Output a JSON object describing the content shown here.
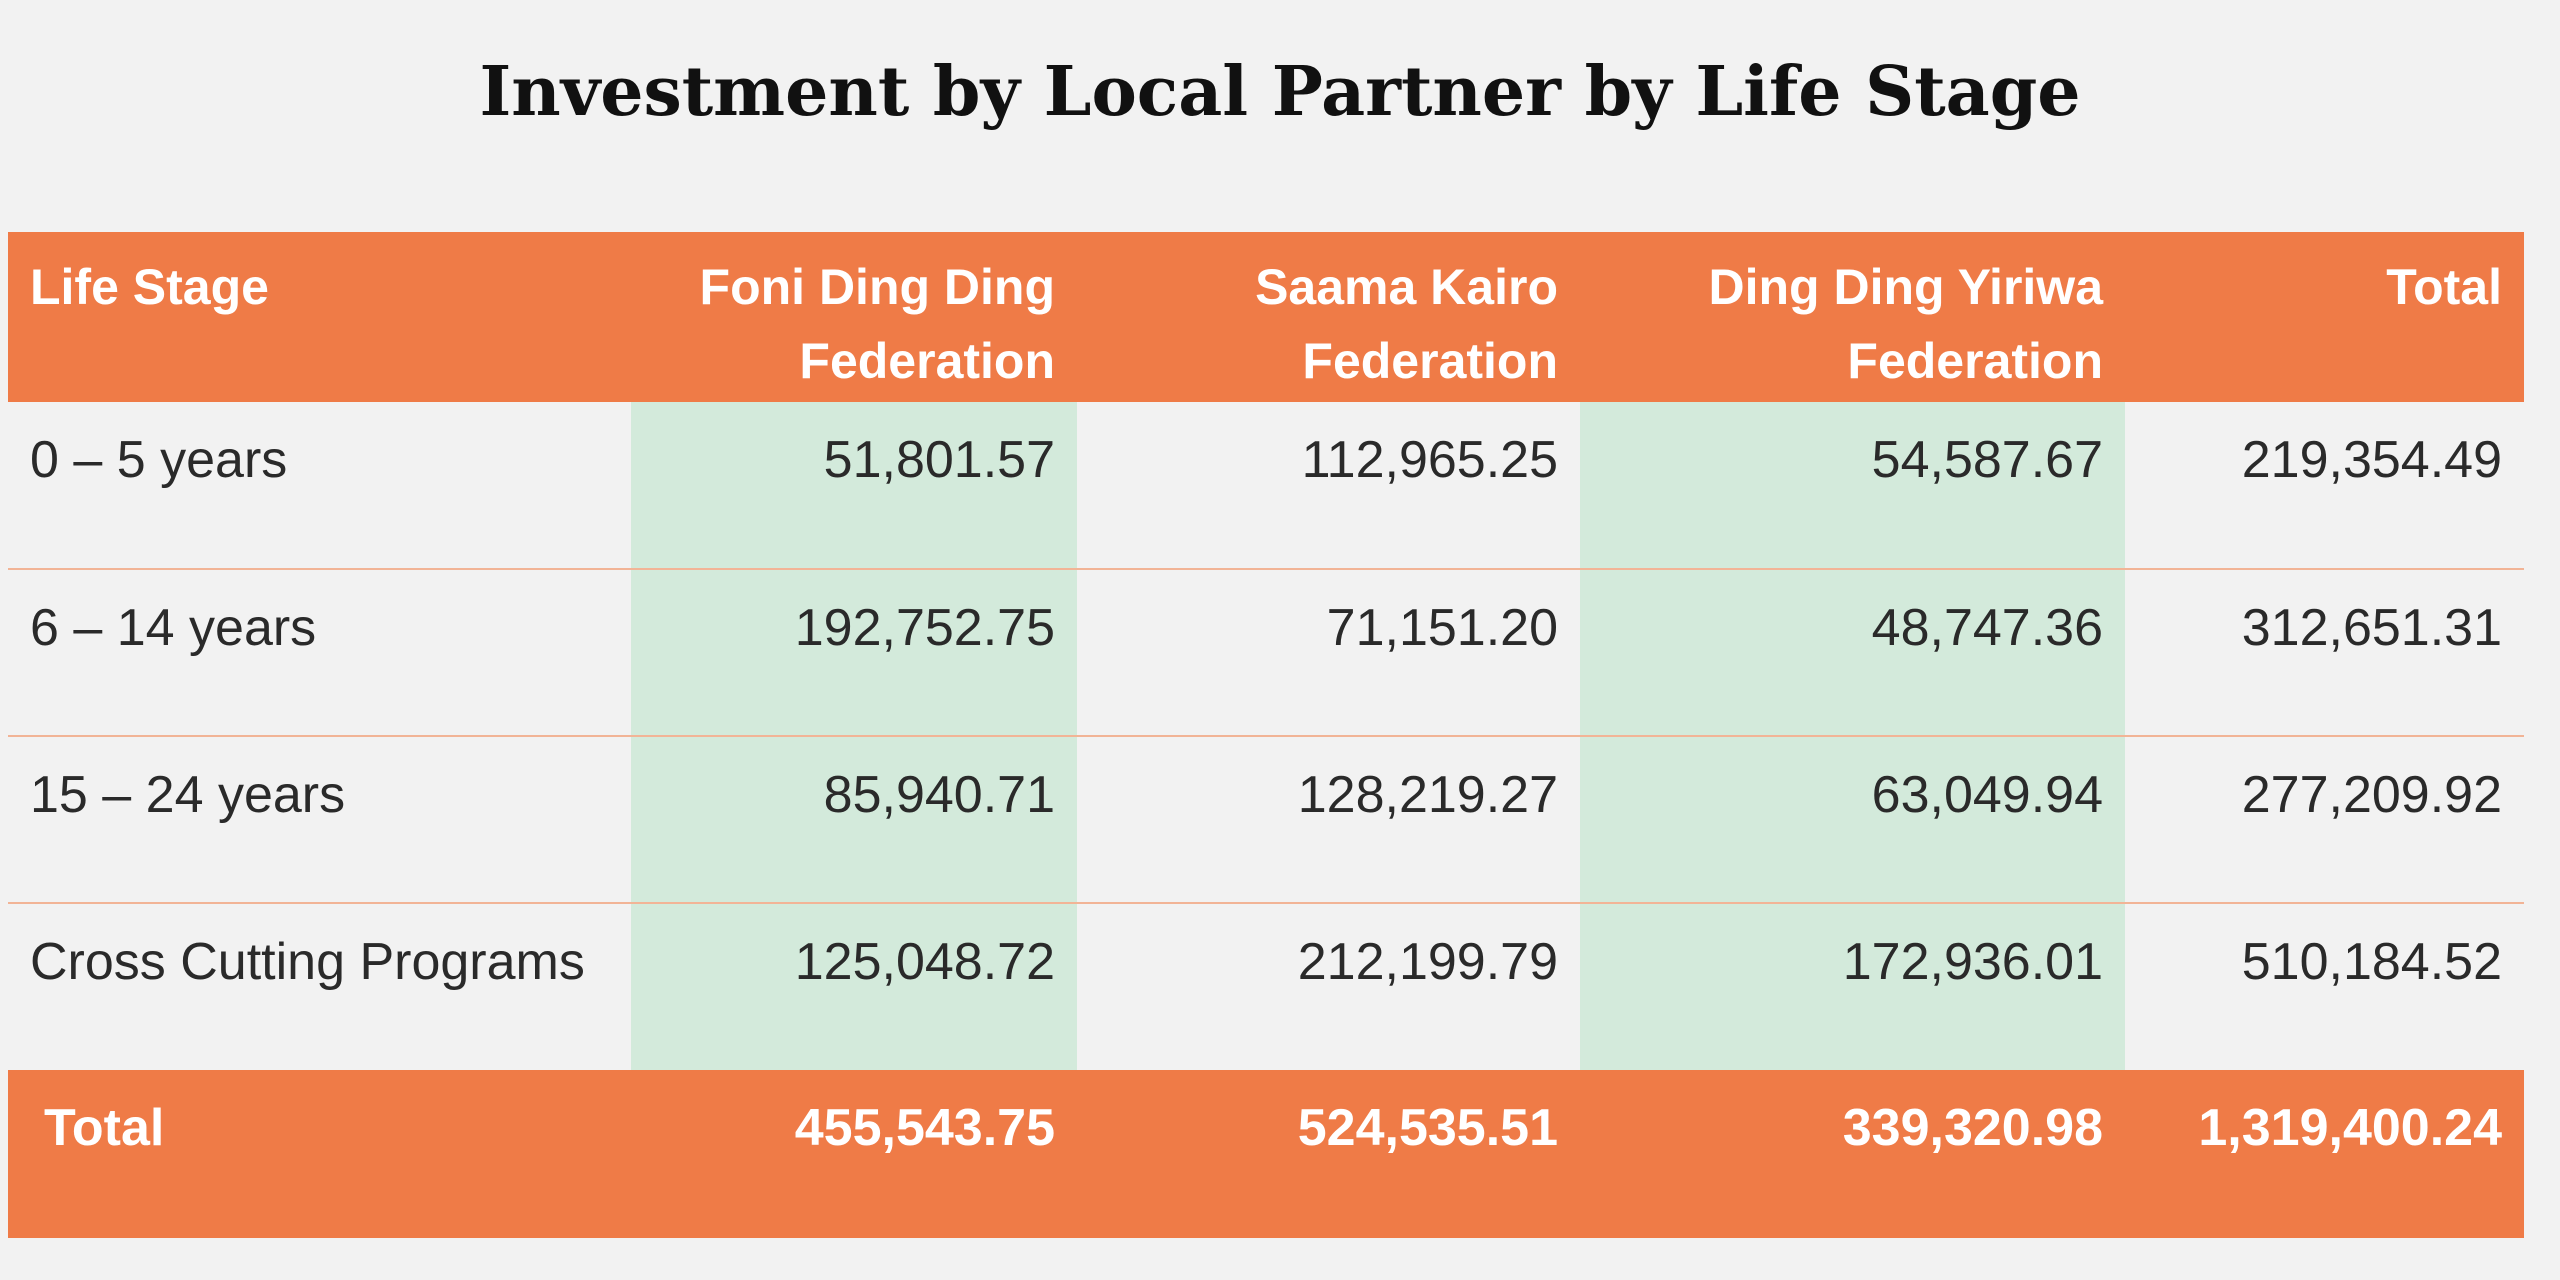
{
  "chart_data": {
    "type": "table",
    "title": "Investment by Local Partner by Life Stage",
    "columns": [
      "Life Stage",
      "Foni Ding Ding Federation",
      "Saama Kairo Federation",
      "Ding Ding Yiriwa Federation",
      "Total"
    ],
    "rows": [
      {
        "label": "0 – 5 years",
        "values": [
          "51,801.57",
          "112,965.25",
          "54,587.67",
          "219,354.49"
        ]
      },
      {
        "label": "6 – 14 years",
        "values": [
          "192,752.75",
          "71,151.20",
          "48,747.36",
          "312,651.31"
        ]
      },
      {
        "label": "15 – 24 years",
        "values": [
          "85,940.71",
          "128,219.27",
          "63,049.94",
          "277,209.92"
        ]
      },
      {
        "label": "Cross Cutting Programs",
        "values": [
          "125,048.72",
          "212,199.79",
          "172,936.01",
          "510,184.52"
        ]
      }
    ],
    "totals": {
      "label": "Total",
      "values": [
        "455,543.75",
        "524,535.51",
        "339,320.98",
        "1,319,400.24"
      ]
    },
    "colors": {
      "header": "#ef7b47",
      "highlight_column": "#d3eadb",
      "row_divider": "#f2b496",
      "background": "#f2f2f2"
    }
  }
}
